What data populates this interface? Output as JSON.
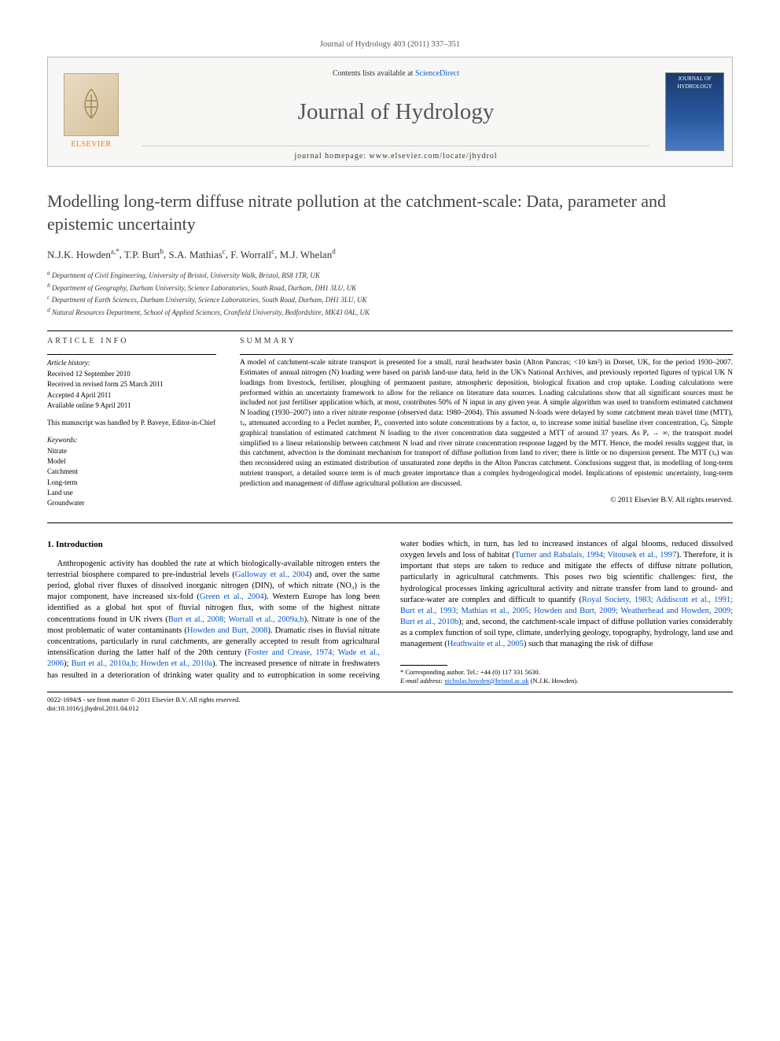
{
  "header": {
    "citation": "Journal of Hydrology 403 (2011) 337–351",
    "contents_prefix": "Contents lists available at ",
    "contents_link": "ScienceDirect",
    "journal_name": "Journal of Hydrology",
    "homepage_prefix": "journal homepage: ",
    "homepage_url": "www.elsevier.com/locate/jhydrol",
    "publisher": "ELSEVIER",
    "cover_label": "JOURNAL OF HYDROLOGY"
  },
  "article": {
    "title": "Modelling long-term diffuse nitrate pollution at the catchment-scale: Data, parameter and epistemic uncertainty",
    "authors_html": "N.J.K. Howden",
    "author_list": [
      {
        "name": "N.J.K. Howden",
        "markers": "a,*"
      },
      {
        "name": "T.P. Burt",
        "markers": "b"
      },
      {
        "name": "S.A. Mathias",
        "markers": "c"
      },
      {
        "name": "F. Worrall",
        "markers": "c"
      },
      {
        "name": "M.J. Whelan",
        "markers": "d"
      }
    ],
    "affiliations": [
      {
        "marker": "a",
        "text": "Department of Civil Engineering, University of Bristol, University Walk, Bristol, BS8 1TR, UK"
      },
      {
        "marker": "b",
        "text": "Department of Geography, Durham University, Science Laboratories, South Road, Durham, DH1 3LU, UK"
      },
      {
        "marker": "c",
        "text": "Department of Earth Sciences, Durham University, Science Laboratories, South Road, Durham, DH1 3LU, UK"
      },
      {
        "marker": "d",
        "text": "Natural Resources Department, School of Applied Sciences, Cranfield University, Bedfordshire, MK43 0AL, UK"
      }
    ]
  },
  "info": {
    "label_article_info": "ARTICLE INFO",
    "label_summary": "SUMMARY",
    "history_head": "Article history:",
    "history": [
      "Received 12 September 2010",
      "Received in revised form 25 March 2011",
      "Accepted 4 April 2011",
      "Available online 9 April 2011"
    ],
    "editor_note": "This manuscript was handled by P. Baveye, Editor-in-Chief",
    "keywords_head": "Keywords:",
    "keywords": [
      "Nitrate",
      "Model",
      "Catchment",
      "Long-term",
      "Land use",
      "Groundwater"
    ]
  },
  "summary": {
    "text": "A model of catchment-scale nitrate transport is presented for a small, rural headwater basin (Alton Pancras; <10 km²) in Dorset, UK, for the period 1930–2007. Estimates of annual nitrogen (N) loading were based on parish land-use data, held in the UK's National Archives, and previously reported figures of typical UK N loadings from livestock, fertiliser, ploughing of permanent pasture, atmospheric deposition, biological fixation and crop uptake. Loading calculations were performed within an uncertainty framework to allow for the reliance on literature data sources. Loading calculations show that all significant sources must be included not just fertiliser application which, at most, contributes 50% of N input in any given year. A simple algorithm was used to transform estimated catchment N loading (1930–2007) into a river nitrate response (observed data: 1980–2004). This assumed N-loads were delayed by some catchment mean travel time (MTT), τₑ, attenuated according to a Peclet number, Pₑ, converted into solute concentrations by a factor, α, to increase some initial baseline river concentration, Cᵦ. Simple graphical translation of estimated catchment N loading to the river concentration data suggested a MTT of around 37 years. As Pₑ → ∞, the transport model simplified to a linear relationship between catchment N load and river nitrate concentration response lagged by the MTT. Hence, the model results suggest that, in this catchment, advection is the dominant mechanism for transport of diffuse pollution from land to river; there is little or no dispersion present. The MTT (τₑ) was then reconsidered using an estimated distribution of unsaturated zone depths in the Alton Pancras catchment. Conclusions suggest that, in modelling of long-term nutrient transport, a detailed source term is of much greater importance than a complex hydrogeological model. Implications of epistemic uncertainty, long-term prediction and management of diffuse agricultural pollution are discussed.",
    "copyright": "© 2011 Elsevier B.V. All rights reserved."
  },
  "body": {
    "section_num": "1.",
    "section_title": "Introduction",
    "para": "Anthropogenic activity has doubled the rate at which biologically-available nitrogen enters the terrestrial biosphere compared to pre-industrial levels (Galloway et al., 2004) and, over the same period, global river fluxes of dissolved inorganic nitrogen (DIN), of which nitrate (NO₃) is the major component, have increased six-fold (Green et al., 2004). Western Europe has long been identified as a global hot spot of fluvial nitrogen flux, with some of the highest nitrate concentrations found in UK rivers (Burt et al., 2008; Worrall et al., 2009a,b). Nitrate is one of the most problematic of water contaminants (Howden and Burt, 2008). Dramatic rises in fluvial nitrate concentrations, particularly in rural catchments, are generally accepted to result from agricultural intensification during the latter half of the 20th century (Foster and Crease, 1974; Wade et al., 2006); Burt et al., 2010a,b; Howden et al., 2010a). The increased presence of nitrate in freshwaters has resulted in a deterioration of drinking water quality and to eutrophication in some receiving water bodies which, in turn, has led to increased instances of algal blooms, reduced dissolved oxygen levels and loss of habitat (Turner and Rabalais, 1994; Vitousek et al., 1997). Therefore, it is important that steps are taken to reduce and mitigate the effects of diffuse nitrate pollution, particularly in agricultural catchments. This poses two big scientific challenges: first, the hydrological processes linking agricultural activity and nitrate transfer from land to ground- and surface-water are complex and difficult to quantify (Royal Society, 1983; Addiscott et al., 1991; Burt et al., 1993; Mathias et al., 2005; Howden and Burt, 2009; Weatherhead and Howden, 2009; Burt et al., 2010b); and, second, the catchment-scale impact of diffuse pollution varies considerably as a complex function of soil type, climate, underlying geology, topography, hydrology, land use and management (Heathwaite et al., 2005) such that managing the risk of diffuse",
    "refs": [
      "Galloway et al., 2004",
      "Green et al., 2004",
      "Burt et al., 2008; Worrall et al., 2009a,b",
      "Howden and Burt, 2008",
      "Foster and Crease, 1974; Wade et al., 2006",
      "Burt et al., 2010a,b; Howden et al., 2010a",
      "Turner and Rabalais, 1994; Vitousek et al., 1997",
      "Royal Society, 1983; Addiscott et al., 1991; Burt et al., 1993; Mathias et al., 2005; Howden and Burt, 2009; Weatherhead and Howden, 2009; Burt et al., 2010b",
      "Heathwaite et al., 2005"
    ]
  },
  "footnotes": {
    "corresponding": "* Corresponding author. Tel.: +44 (0) 117 331 5630.",
    "email_label": "E-mail address:",
    "email": "nicholas.howden@bristol.ac.uk",
    "email_suffix": "(N.J.K. Howden)."
  },
  "footer": {
    "left_line1": "0022-1694/$ - see front matter © 2011 Elsevier B.V. All rights reserved.",
    "left_line2": "doi:10.1016/j.jhydrol.2011.04.012"
  },
  "colors": {
    "link": "#0055cc",
    "elsevier_orange": "#ff7a00",
    "cover_blue": "#1a3a6e"
  }
}
